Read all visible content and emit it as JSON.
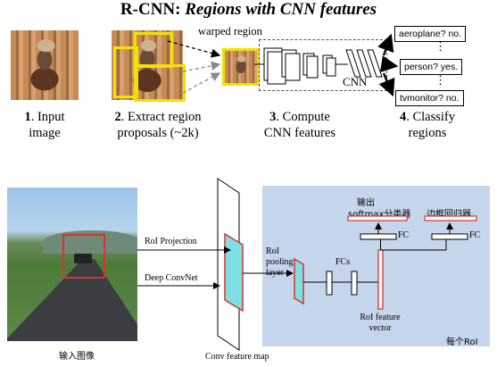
{
  "top": {
    "title_main": "R-CNN: ",
    "title_italic": "Regions with CNN features",
    "warped_label": "warped region",
    "cnn_label": "CNN",
    "outputs": [
      "aeroplane? no.",
      "person? yes.",
      "tvmonitor? no."
    ],
    "ellipsis": "⋮",
    "steps": [
      {
        "num": "1",
        "line1": "Input",
        "line2": "image"
      },
      {
        "num": "2",
        "line1": "Extract region",
        "line2": "proposals (~2k)"
      },
      {
        "num": "3",
        "line1": "Compute",
        "line2": "CNN features"
      },
      {
        "num": "4",
        "line1": "Classify",
        "line2": "regions"
      }
    ]
  },
  "bottom": {
    "input_caption": "输入图像",
    "roi_projection": "RoI Projection",
    "deep_convnet": "Deep ConvNet",
    "conv_feature_map": "Conv feature map",
    "roi_pooling": [
      "RoI",
      "pooling",
      "layer"
    ],
    "fcs": "FCs",
    "fc_left": "FC",
    "fc_right": "FC",
    "output_label": "输出",
    "softmax_label": "softmax分类器",
    "bbox_label": "边框回归器",
    "roi_feature": [
      "RoI feature",
      "vector"
    ],
    "per_roi": "每个RoI"
  },
  "colors": {
    "panel_bg": "#c5d6ec",
    "cyan": "#7fdfe6",
    "red": "#d9342b",
    "yellow": "#f2e000"
  }
}
